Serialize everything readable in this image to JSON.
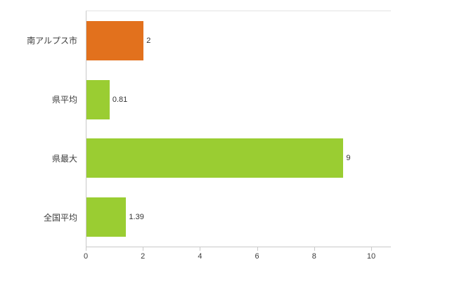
{
  "chart_data": {
    "type": "bar",
    "orientation": "horizontal",
    "title": "",
    "xlabel": "",
    "ylabel": "",
    "categories": [
      "南アルプス市",
      "県平均",
      "県最大",
      "全国平均"
    ],
    "values": [
      2,
      0.81,
      9,
      1.39
    ],
    "value_labels": [
      "2",
      "0.81",
      "9",
      "1.39"
    ],
    "bar_colors": [
      "#e2711d",
      "#9acd32",
      "#9acd32",
      "#9acd32"
    ],
    "xlim": [
      0,
      10
    ],
    "x_ticks": [
      "0",
      "2",
      "4",
      "6",
      "8",
      "10"
    ],
    "grid": false,
    "legend_position": "none"
  },
  "colors": {
    "axis": "#c9c9c9",
    "label_text": "#3c3c3c",
    "value_text": "#333333"
  }
}
